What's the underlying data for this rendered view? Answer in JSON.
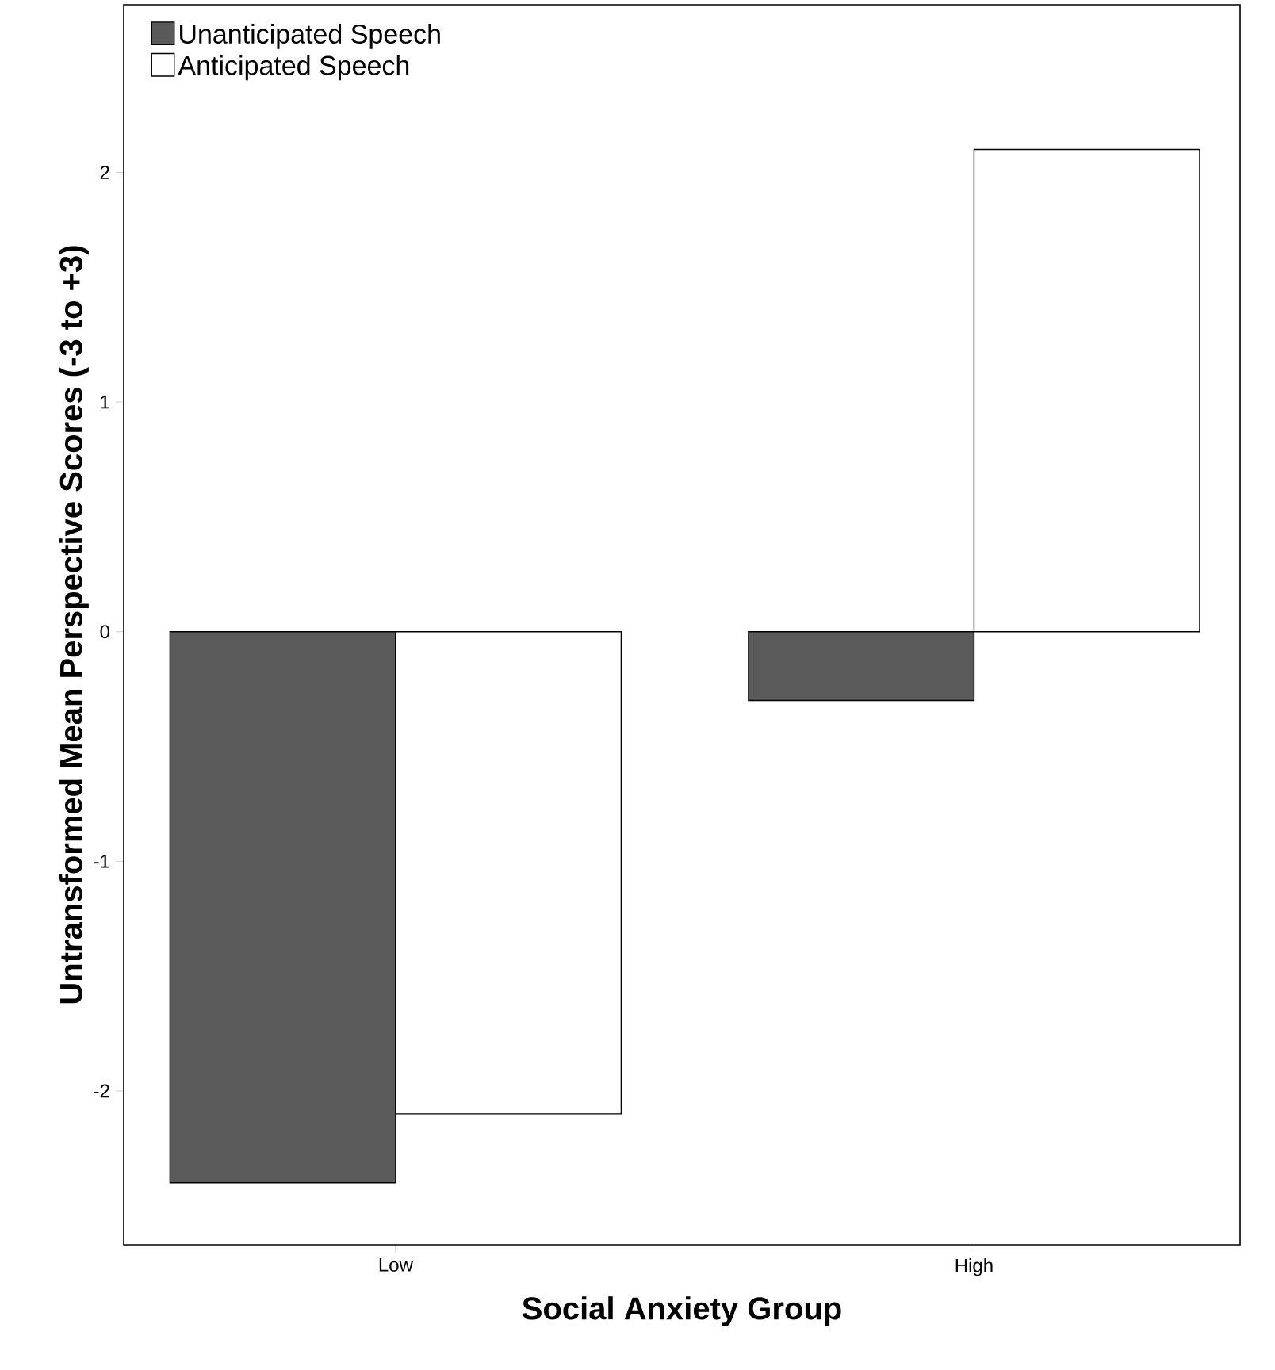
{
  "chart_data": {
    "type": "bar",
    "xlabel": "Social Anxiety Group",
    "ylabel": "Untransformed Mean Perspective Scores (-3 to +3)",
    "categories": [
      "Low",
      "High"
    ],
    "series": [
      {
        "name": "Unanticipated Speech",
        "color": "#5a5a5a",
        "values": [
          -2.4,
          -0.3
        ]
      },
      {
        "name": "Anticipated Speech",
        "color": "#ffffff",
        "values": [
          -2.1,
          2.1
        ]
      }
    ],
    "ylim": [
      -2.67,
      2.73
    ],
    "yticks": [
      -2,
      -1,
      0,
      1,
      2
    ],
    "grid": false,
    "legend": "top left"
  }
}
